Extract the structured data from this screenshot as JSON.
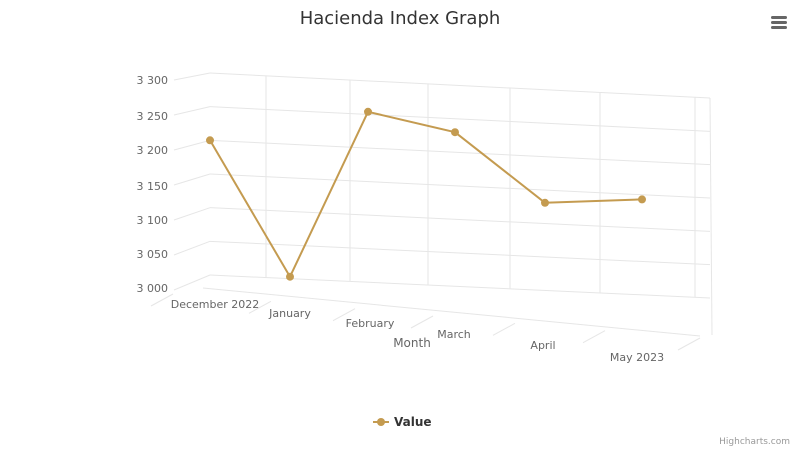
{
  "chart_data": {
    "type": "line",
    "title": "Hacienda Index Graph",
    "xlabel": "Month",
    "ylabel": "",
    "categories": [
      "December 2022",
      "January",
      "February",
      "March",
      "April",
      "May 2023"
    ],
    "series": [
      {
        "name": "Value",
        "values": [
          3200,
          3003,
          3254,
          3230,
          3131,
          3143
        ],
        "color": "#c49b50"
      }
    ],
    "ylim": [
      3000,
      3300
    ],
    "yticks": [
      3000,
      3050,
      3100,
      3150,
      3200,
      3250,
      3300
    ],
    "ytick_labels": [
      "3 000",
      "3 050",
      "3 100",
      "3 150",
      "3 200",
      "3 250",
      "3 300"
    ],
    "grid": true,
    "legend": "bottom-center",
    "style": "3d"
  },
  "credits": "Highcharts.com",
  "menu": {
    "icon": "hamburger-menu-icon"
  }
}
